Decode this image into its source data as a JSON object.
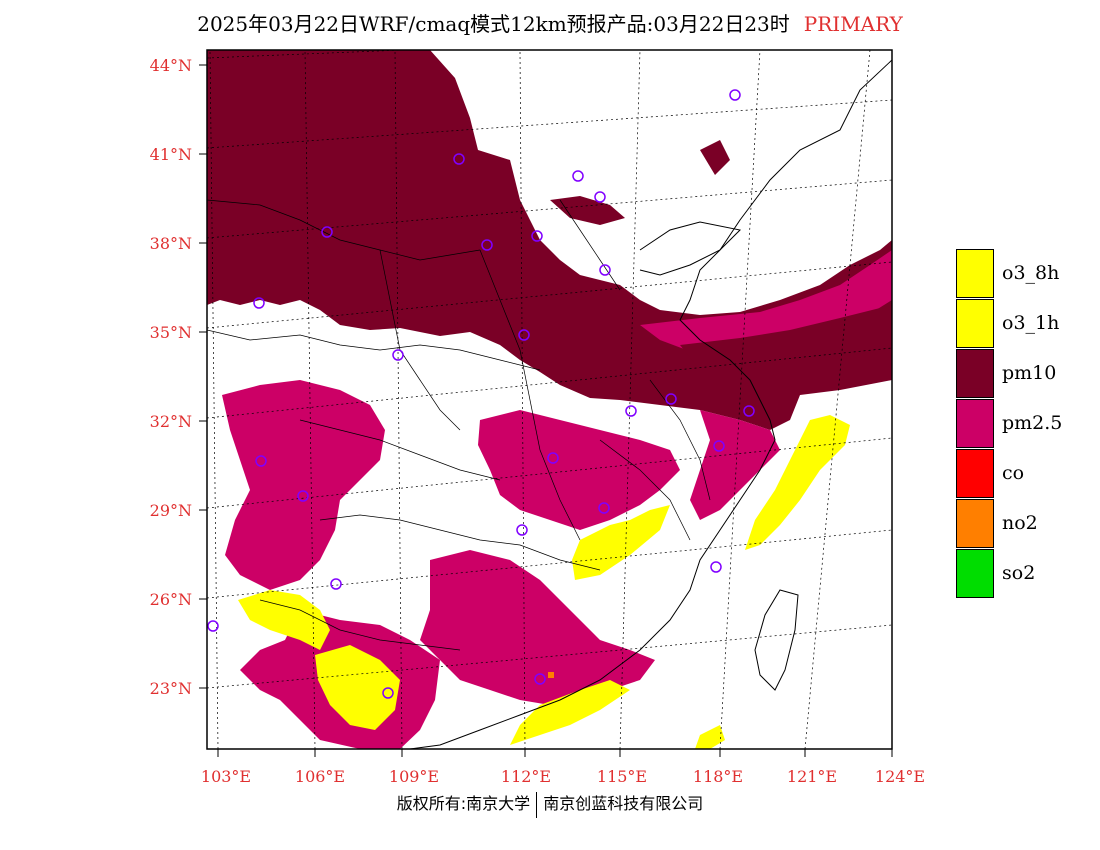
{
  "title": {
    "main": "2025年03月22日WRF/cmaq模式12km预报产品:03月22日23时",
    "tag": "PRIMARY"
  },
  "colors": {
    "o3_8h": "#ffff00",
    "o3_1h": "#ffff00",
    "pm10": "#7a0026",
    "pm25": "#cc0066",
    "co": "#ff0000",
    "no2": "#ff7f00",
    "so2": "#00dd00",
    "axis_label": "#e03030",
    "station": "#8000ff"
  },
  "axes": {
    "lat_labels": [
      "44°N",
      "41°N",
      "38°N",
      "35°N",
      "32°N",
      "29°N",
      "26°N",
      "23°N"
    ],
    "lon_labels": [
      "103°E",
      "106°E",
      "109°E",
      "112°E",
      "115°E",
      "118°E",
      "121°E",
      "124°E"
    ]
  },
  "legend": [
    {
      "label": "o3_8h",
      "color": "#ffff00"
    },
    {
      "label": "o3_1h",
      "color": "#ffff00"
    },
    {
      "label": "pm10",
      "color": "#7a0026"
    },
    {
      "label": "pm2.5",
      "color": "#cc0066"
    },
    {
      "label": "co",
      "color": "#ff0000"
    },
    {
      "label": "no2",
      "color": "#ff7f00"
    },
    {
      "label": "so2",
      "color": "#00dd00"
    }
  ],
  "copyright": {
    "left": "版权所有:南京大学",
    "right": "南京创蓝科技有限公司"
  }
}
